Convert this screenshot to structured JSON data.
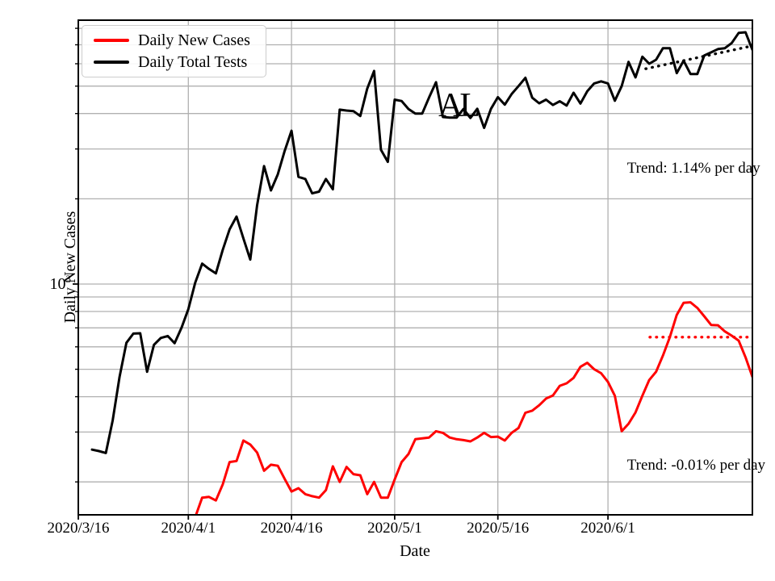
{
  "figure": {
    "background": "#ffffff",
    "grid_color": "#b0b0b0",
    "spine_color": "#000000"
  },
  "axes": {
    "xlabel": "Date",
    "ylabel": "Daily New Cases",
    "y_major_tick": {
      "base": "10",
      "exponent": "3"
    }
  },
  "legend": {
    "position": "upper left",
    "items": [
      {
        "label": "Daily New Cases",
        "color": "#ff0000"
      },
      {
        "label": "Daily Total Tests",
        "color": "#000000"
      }
    ]
  },
  "chart_data": {
    "type": "line",
    "log_y": true,
    "grid": true,
    "title": "",
    "xlabel": "Date",
    "ylabel": "Daily New Cases",
    "x_axis": {
      "start_date": "2020/3/16",
      "total_days": 98,
      "end_date": "2020/6/22",
      "tick_days": [
        0,
        16,
        31,
        46,
        61,
        77
      ],
      "tick_labels": [
        "2020/3/16",
        "2020/4/1",
        "2020/4/16",
        "2020/5/1",
        "2020/5/16",
        "2020/6/1"
      ]
    },
    "y_axis": {
      "lim": [
        153,
        8550
      ],
      "major_gridline_values": [
        1000
      ],
      "minor_gridline_values": [
        200,
        300,
        400,
        500,
        600,
        700,
        800,
        900,
        2000,
        3000,
        4000,
        5000,
        6000,
        7000,
        8000
      ]
    },
    "series": [
      {
        "name": "Daily Total Tests",
        "color": "#000000",
        "start_date": "2020/3/18",
        "start_day": 2,
        "values": [
          260,
          257,
          253,
          330,
          470,
          620,
          668,
          670,
          490,
          610,
          645,
          655,
          618,
          700,
          815,
          1010,
          1180,
          1130,
          1090,
          1320,
          1560,
          1730,
          1450,
          1220,
          1900,
          2610,
          2140,
          2440,
          2950,
          3480,
          2390,
          2350,
          2090,
          2120,
          2350,
          2160,
          4130,
          4100,
          4080,
          3920,
          4900,
          5660,
          2980,
          2700,
          4480,
          4430,
          4150,
          4000,
          4000,
          4560,
          5160,
          3890,
          3870,
          3870,
          4150,
          3860,
          4160,
          3560,
          4160,
          4570,
          4300,
          4690,
          5000,
          5350,
          4550,
          4350,
          4480,
          4290,
          4420,
          4270,
          4740,
          4340,
          4800,
          5110,
          5200,
          5110,
          4440,
          5000,
          6090,
          5370,
          6350,
          6000,
          6200,
          6810,
          6810,
          5560,
          6150,
          5520,
          5520,
          6420,
          6580,
          6760,
          6810,
          7100,
          7710,
          7750,
          6720
        ]
      },
      {
        "name": "Daily New Cases",
        "color": "#ff0000",
        "start_date": "2020/4/2",
        "start_day": 17,
        "values": [
          150,
          176,
          177,
          172,
          196,
          235,
          237,
          280,
          271,
          254,
          219,
          230,
          228,
          205,
          185,
          190,
          181,
          178,
          176,
          187,
          227,
          200,
          226,
          213,
          211,
          181,
          200,
          176,
          176,
          204,
          235,
          251,
          283,
          285,
          287,
          302,
          298,
          287,
          283,
          281,
          278,
          287,
          298,
          288,
          289,
          280,
          298,
          310,
          351,
          357,
          373,
          394,
          404,
          437,
          446,
          466,
          510,
          527,
          500,
          484,
          451,
          403,
          302,
          321,
          352,
          403,
          458,
          490,
          559,
          650,
          778,
          858,
          862,
          823,
          769,
          717,
          715,
          680,
          657,
          631,
          551,
          470
        ]
      }
    ],
    "trend_lines": [
      {
        "series": "Daily Total Tests",
        "color": "#000000",
        "label": "Trend: 1.14% per day",
        "day_start": 82.5,
        "value_start": 5760,
        "day_end": 97.8,
        "value_end": 6920
      },
      {
        "series": "Daily New Cases",
        "color": "#ff0000",
        "label": "Trend: -0.01% per day",
        "day_start": 83.1,
        "value_start": 649,
        "day_end": 98,
        "value_end": 649
      }
    ],
    "annotations": {
      "state": {
        "text": "AL",
        "x_frac": 0.563,
        "y_frac": 0.173
      },
      "trend_tests": {
        "text": "Trend: 1.14% per day",
        "x_frac": 0.814,
        "y_frac": 0.3
      },
      "trend_cases": {
        "text": "Trend: -0.01% per day",
        "x_frac": 0.814,
        "y_frac": 0.901
      }
    }
  }
}
